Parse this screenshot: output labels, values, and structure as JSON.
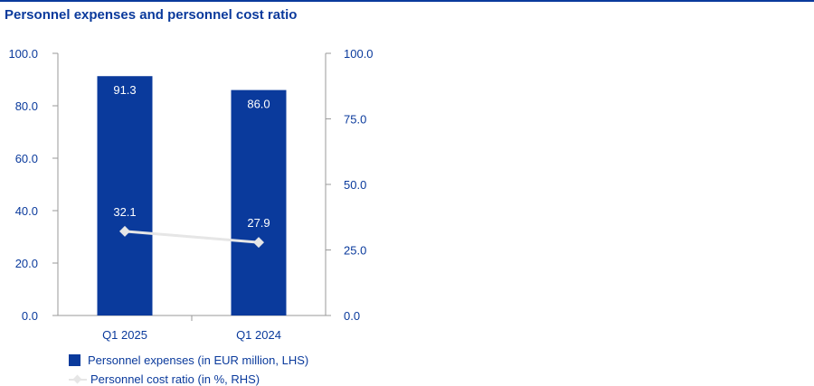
{
  "title": "Personnel expenses and personnel cost ratio",
  "colors": {
    "accent": "#0a3a9c",
    "bar": "#0a3a9c",
    "line": "#e6e6e6",
    "axis": "#9a9a9a"
  },
  "chart_data": {
    "type": "bar",
    "categories": [
      "Q1 2025",
      "Q1 2024"
    ],
    "series": [
      {
        "name": "Personnel expenses (in EUR million, LHS)",
        "type": "bar",
        "axis": "left",
        "values": [
          91.3,
          86.0
        ],
        "labels": [
          "91.3",
          "86.0"
        ]
      },
      {
        "name": "Personnel cost ratio (in %, RHS)",
        "type": "line",
        "axis": "right",
        "values": [
          32.1,
          27.9
        ],
        "labels": [
          "32.1",
          "27.9"
        ]
      }
    ],
    "left_axis": {
      "ylim": [
        0,
        100
      ],
      "ticks": [
        "0.0",
        "20.0",
        "40.0",
        "60.0",
        "80.0",
        "100.0"
      ]
    },
    "right_axis": {
      "ylim": [
        0,
        100
      ],
      "ticks": [
        "0.0",
        "25.0",
        "50.0",
        "75.0",
        "100.0"
      ]
    },
    "grid": false,
    "legend_position": "bottom-left"
  },
  "legend": [
    {
      "label": "Personnel expenses (in EUR million, LHS)"
    },
    {
      "label": "Personnel cost ratio (in %, RHS)"
    }
  ]
}
